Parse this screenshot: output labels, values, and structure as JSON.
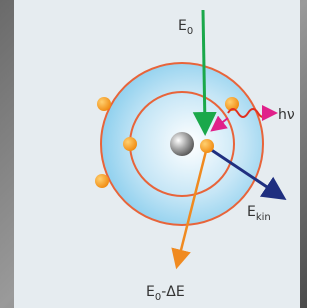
{
  "labels": {
    "incident": {
      "base": "E",
      "sub": "0"
    },
    "emitted": "hν",
    "ejected": {
      "base": "E",
      "sub": "kin"
    },
    "scattered": {
      "base": "E",
      "sub": "0",
      "suffix": "-ΔE"
    }
  }
}
